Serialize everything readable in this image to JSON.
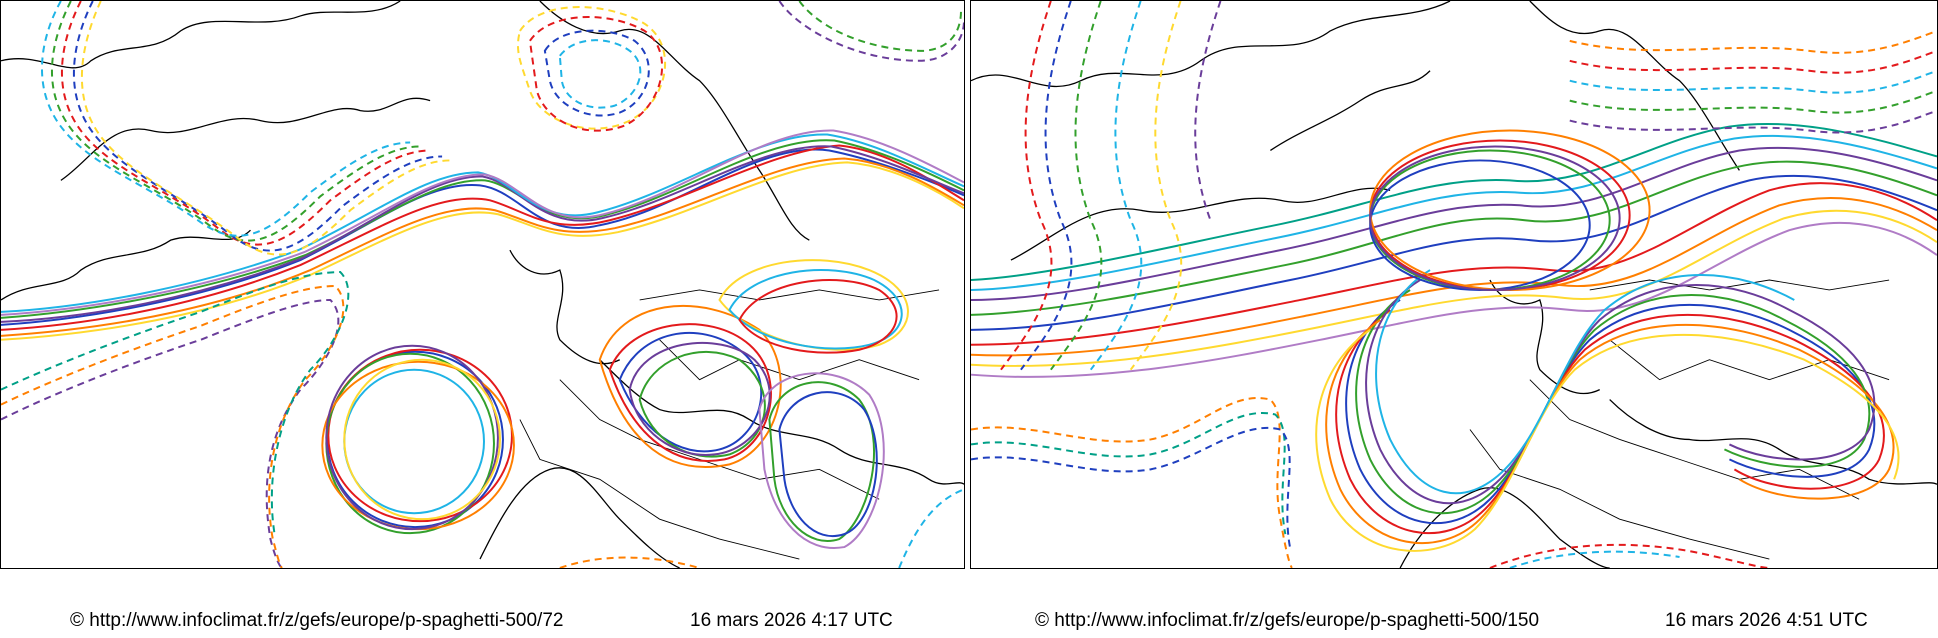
{
  "panels": [
    {
      "id": "left",
      "source_url": "© http://www.infoclimat.fr/z/gefs/europe/p-spaghetti-500/72",
      "timestamp": "16 mars 2026  4:17 UTC"
    },
    {
      "id": "right",
      "source_url": "© http://www.infoclimat.fr/z/gefs/europe/p-spaghetti-500/150",
      "timestamp": "16 mars 2026  4:51 UTC"
    }
  ],
  "member_colors": [
    "#e31a1c",
    "#1f3fbf",
    "#ff7f00",
    "#33a02c",
    "#6a3d9a",
    "#ffd92f",
    "#1fb4e6",
    "#a6cee3",
    "#b07cc6",
    "#00a087",
    "#d62728",
    "#f781bf"
  ]
}
